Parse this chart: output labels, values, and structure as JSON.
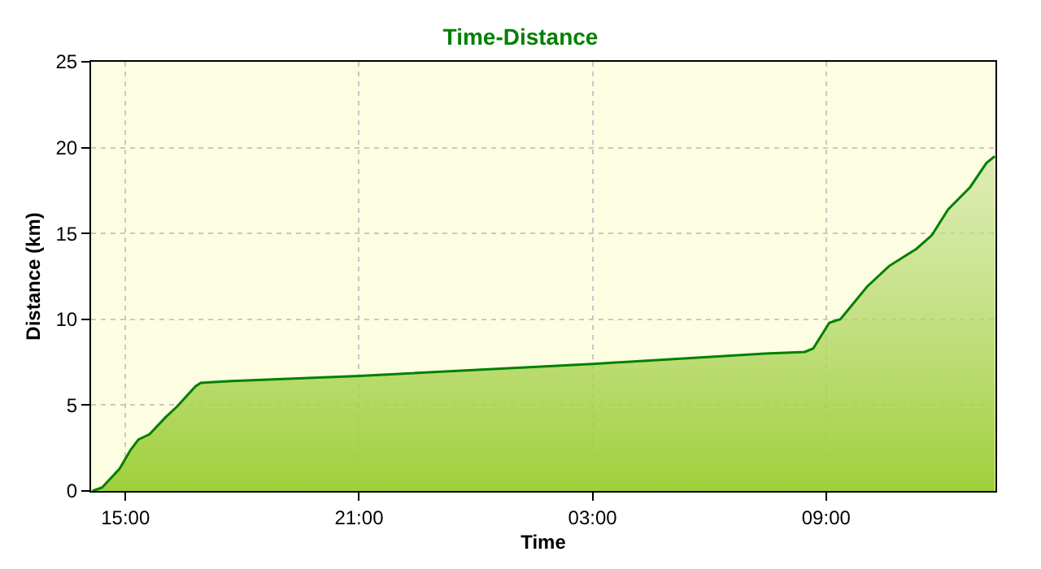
{
  "chart_data": {
    "type": "area",
    "title": "Time-Distance",
    "xlabel": "Time",
    "ylabel": "Distance (km)",
    "x": [
      "--01-01T14:09",
      "--01-01T14:24",
      "--01-01T14:51",
      "--01-01T15:08",
      "--01-01T15:20",
      "--01-01T15:37",
      "--01-01T16:02",
      "--01-01T16:19",
      "--01-01T16:48",
      "--01-01T16:56",
      "--01-01T17:44",
      "--01-01T21:00",
      "--01-02T03:00",
      "--01-02T07:25",
      "--01-02T08:27",
      "--01-02T08:40",
      "--01-02T09:05",
      "--01-02T09:22",
      "--01-02T10:03",
      "--01-02T10:37",
      "--01-02T11:02",
      "--01-02T11:19",
      "--01-02T11:43",
      "--01-02T12:08",
      "--01-02T12:42",
      "--01-02T13:07",
      "--01-02T13:20"
    ],
    "series": [
      {
        "color": "#008000",
        "values": [
          0,
          0.2,
          1.3,
          2.4,
          3.0,
          3.3,
          4.3,
          4.9,
          6.1,
          6.3,
          6.4,
          6.7,
          7.4,
          8.0,
          8.1,
          8.3,
          9.8,
          10.0,
          11.9,
          13.1,
          13.7,
          14.1,
          14.9,
          16.4,
          17.7,
          19.1,
          19.5
        ]
      }
    ],
    "xlim": [
      "--01-01T14:07",
      "--01-02T13:21"
    ],
    "xticks": [
      {
        "value": "--01-01T15:00",
        "label": "15:00"
      },
      {
        "value": "--01-01T21:00",
        "label": "21:00"
      },
      {
        "value": "--01-02T03:00",
        "label": "03:00"
      },
      {
        "value": "--01-02T09:00",
        "label": "09:00"
      }
    ],
    "ylim": [
      0,
      25
    ],
    "yticks": [
      0,
      5,
      10,
      15,
      20,
      25
    ],
    "grid": true
  }
}
